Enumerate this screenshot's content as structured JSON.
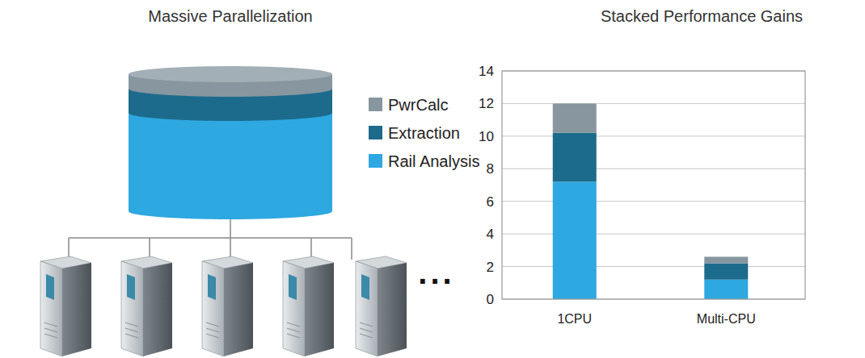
{
  "diagram": {
    "title": "Massive Parallelization",
    "ellipsis": "..."
  },
  "chart_data": {
    "type": "bar",
    "title": "Stacked Performance Gains",
    "stacked": true,
    "grid": true,
    "categories": [
      "1CPU",
      "Multi-CPU"
    ],
    "series": [
      {
        "name": "Rail Analysis",
        "color": "#2ea8e0",
        "values": [
          7.2,
          1.2
        ]
      },
      {
        "name": "Extraction",
        "color": "#1d6b8c",
        "values": [
          3.0,
          1.0
        ]
      },
      {
        "name": "PwrCalc",
        "color": "#87969f",
        "values": [
          1.8,
          0.4
        ]
      }
    ],
    "ylim": [
      0,
      14
    ],
    "yticks": [
      0,
      2,
      4,
      6,
      8,
      10,
      12,
      14
    ]
  }
}
